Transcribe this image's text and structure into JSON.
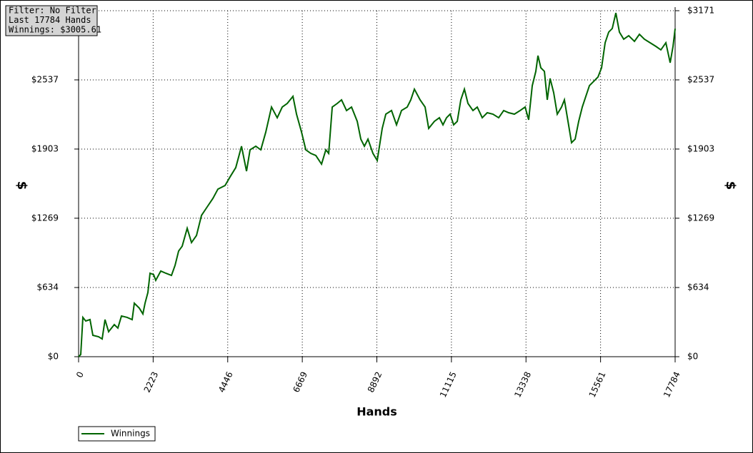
{
  "chart_data": {
    "type": "line",
    "annotations": [
      "Filter: No Filter",
      "Last 17784 Hands",
      "Winnings: $3005.61"
    ],
    "xlabel": "Hands",
    "ylabel": "$",
    "y2label": "$",
    "x": [
      0,
      64,
      128,
      213,
      341,
      426,
      596,
      703,
      788,
      895,
      1065,
      1171,
      1278,
      1448,
      1597,
      1661,
      1810,
      1917,
      1981,
      2066,
      2130,
      2237,
      2300,
      2450,
      2599,
      2769,
      2876,
      2982,
      3089,
      3238,
      3366,
      3515,
      3664,
      3834,
      4005,
      4154,
      4367,
      4516,
      4686,
      4857,
      5006,
      5112,
      5283,
      5432,
      5581,
      5751,
      5922,
      6071,
      6220,
      6391,
      6497,
      6646,
      6774,
      6923,
      7072,
      7243,
      7371,
      7456,
      7562,
      7711,
      7839,
      7988,
      8137,
      8307,
      8414,
      8520,
      8627,
      8776,
      8903,
      9052,
      9159,
      9329,
      9478,
      9627,
      9797,
      9904,
      10011,
      10181,
      10330,
      10437,
      10607,
      10756,
      10863,
      10969,
      11076,
      11182,
      11289,
      11395,
      11502,
      11608,
      11757,
      11885,
      12034,
      12183,
      12353,
      12524,
      12673,
      12822,
      12992,
      13163,
      13312,
      13418,
      13525,
      13631,
      13695,
      13780,
      13887,
      13972,
      14057,
      14164,
      14270,
      14398,
      14483,
      14590,
      14696,
      14803,
      14909,
      15016,
      15122,
      15229,
      15335,
      15484,
      15591,
      15697,
      15804,
      15910,
      16017,
      16123,
      16251,
      16400,
      16571,
      16720,
      16869,
      17040,
      17210,
      17359,
      17508,
      17636,
      17721,
      17784
    ],
    "series": [
      {
        "name": "Winnings",
        "color": "#006400",
        "values": [
          0,
          20,
          360,
          327,
          340,
          196,
          183,
          163,
          340,
          229,
          294,
          262,
          373,
          360,
          340,
          490,
          445,
          392,
          490,
          588,
          765,
          752,
          700,
          785,
          765,
          745,
          837,
          968,
          1013,
          1177,
          1046,
          1111,
          1295,
          1373,
          1451,
          1536,
          1569,
          1648,
          1733,
          1929,
          1700,
          1896,
          1929,
          1896,
          2059,
          2288,
          2190,
          2288,
          2321,
          2386,
          2223,
          2059,
          1896,
          1863,
          1844,
          1765,
          1896,
          1863,
          2288,
          2321,
          2354,
          2256,
          2288,
          2157,
          1994,
          1929,
          1994,
          1863,
          1798,
          2092,
          2223,
          2256,
          2125,
          2256,
          2288,
          2354,
          2452,
          2354,
          2288,
          2092,
          2157,
          2190,
          2125,
          2190,
          2223,
          2125,
          2157,
          2354,
          2452,
          2321,
          2256,
          2288,
          2190,
          2236,
          2223,
          2190,
          2256,
          2236,
          2223,
          2256,
          2288,
          2171,
          2484,
          2615,
          2759,
          2648,
          2615,
          2354,
          2550,
          2419,
          2223,
          2288,
          2354,
          2157,
          1961,
          1994,
          2157,
          2288,
          2386,
          2484,
          2517,
          2563,
          2648,
          2877,
          2975,
          3008,
          3151,
          2975,
          2910,
          2942,
          2890,
          2955,
          2910,
          2877,
          2844,
          2812,
          2877,
          2694,
          2844,
          3006
        ]
      }
    ],
    "xlim": [
      0,
      17784
    ],
    "xticks": [
      0,
      2223,
      4446,
      6669,
      8892,
      11115,
      13338,
      15561,
      17784
    ],
    "ylim": [
      0,
      3171
    ],
    "yticks": [
      {
        "value": 0,
        "label": "$0"
      },
      {
        "value": 634,
        "label": "$634"
      },
      {
        "value": 1269,
        "label": "$1269"
      },
      {
        "value": 1903,
        "label": "$1903"
      },
      {
        "value": 2537,
        "label": "$2537"
      },
      {
        "value": 3171,
        "label": "$3171"
      }
    ],
    "grid": true,
    "legend": "bottom-left"
  }
}
